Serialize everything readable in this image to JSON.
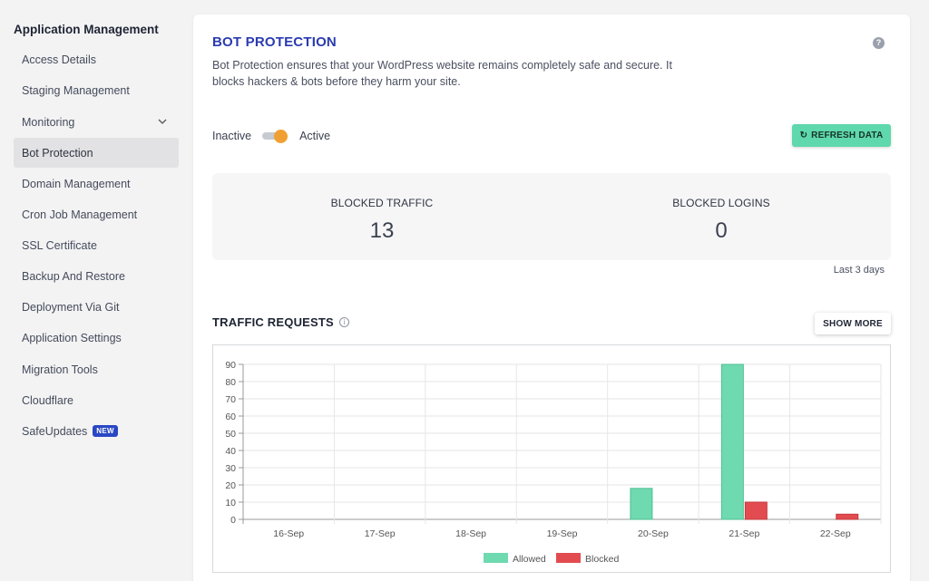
{
  "sidebar": {
    "title": "Application Management",
    "items": [
      {
        "label": "Access Details"
      },
      {
        "label": "Staging Management"
      },
      {
        "label": "Monitoring"
      },
      {
        "label": "Bot Protection"
      },
      {
        "label": "Domain Management"
      },
      {
        "label": "Cron Job Management"
      },
      {
        "label": "SSL Certificate"
      },
      {
        "label": "Backup And Restore"
      },
      {
        "label": "Deployment Via Git"
      },
      {
        "label": "Application Settings"
      },
      {
        "label": "Migration Tools"
      },
      {
        "label": "Cloudflare"
      },
      {
        "label": "SafeUpdates",
        "badge": "NEW"
      }
    ]
  },
  "main": {
    "title": "BOT PROTECTION",
    "help": "?",
    "description": "Bot Protection ensures that your WordPress website remains completely safe and secure. It blocks hackers & bots before they harm your site.",
    "toggle": {
      "off_label": "Inactive",
      "on_label": "Active",
      "state": "on"
    },
    "refresh_label": "REFRESH DATA",
    "stats": {
      "blocked_traffic_label": "BLOCKED TRAFFIC",
      "blocked_traffic_value": "13",
      "blocked_logins_label": "BLOCKED LOGINS",
      "blocked_logins_value": "0"
    },
    "period": "Last 3 days",
    "traffic_title": "TRAFFIC REQUESTS",
    "info": "i",
    "show_more_label": "SHOW MORE"
  },
  "colors": {
    "accent": "#2a3bb0",
    "allowed": "#6fd9b0",
    "blocked": "#e24c50",
    "toggle": "#f0a033",
    "refresh": "#5ed8ac"
  },
  "chart_data": {
    "type": "bar",
    "categories": [
      "16-Sep",
      "17-Sep",
      "18-Sep",
      "19-Sep",
      "20-Sep",
      "21-Sep",
      "22-Sep"
    ],
    "series": [
      {
        "name": "Allowed",
        "values": [
          0,
          0,
          0,
          0,
          18,
          90,
          0
        ],
        "color": "#6fd9b0"
      },
      {
        "name": "Blocked",
        "values": [
          0,
          0,
          0,
          0,
          0,
          10,
          3
        ],
        "color": "#e24c50"
      }
    ],
    "ylim": [
      0,
      90
    ],
    "yticks": [
      0,
      10,
      20,
      30,
      40,
      50,
      60,
      70,
      80,
      90
    ],
    "grid": true,
    "legend": "bottom"
  }
}
